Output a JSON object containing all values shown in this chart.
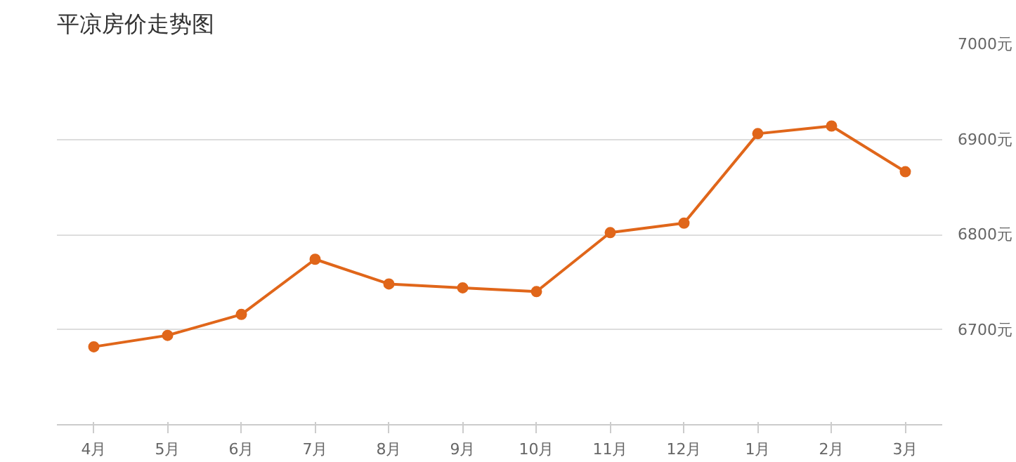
{
  "chart_data": {
    "type": "line",
    "title": "平凉房价走势图",
    "categories": [
      "4月",
      "5月",
      "6月",
      "7月",
      "8月",
      "9月",
      "10月",
      "11月",
      "12月",
      "1月",
      "2月",
      "3月"
    ],
    "series": [
      {
        "color": "#e0661a",
        "values": [
          6682,
          6694,
          6716,
          6774,
          6748,
          6744,
          6740,
          6802,
          6812,
          6906,
          6914,
          6866
        ]
      }
    ],
    "ylim": [
      6600,
      7000
    ],
    "yticks": [
      {
        "value": 6600,
        "label": null
      },
      {
        "value": 6700,
        "label": "6700元"
      },
      {
        "value": 6800,
        "label": "6800元"
      },
      {
        "value": 6900,
        "label": "6900元"
      },
      {
        "value": 7000,
        "label": "7000元"
      }
    ],
    "grid": "y",
    "marker": "circle",
    "line_style": "solid"
  }
}
